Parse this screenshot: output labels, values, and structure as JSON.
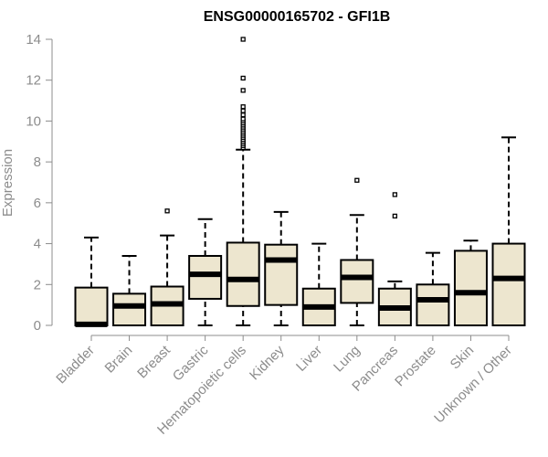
{
  "chart_data": {
    "type": "boxplot",
    "title": "ENSG00000165702 - GFI1B",
    "xlabel": "",
    "ylabel": "Expression",
    "ylim": [
      0,
      14
    ],
    "yticks": [
      0,
      2,
      4,
      6,
      8,
      10,
      12,
      14
    ],
    "grid": false,
    "legend": "none",
    "colors": {
      "box_fill": "#ede6cf",
      "box_stroke": "#000000",
      "axis": "#8c8c8c",
      "text": "#8c8c8c"
    },
    "categories": [
      "Bladder",
      "Brain",
      "Breast",
      "Gastric",
      "Hematopoietic cells",
      "Kidney",
      "Liver",
      "Lung",
      "Pancreas",
      "Prostate",
      "Skin",
      "Unknown / Other"
    ],
    "boxes": [
      {
        "category": "Bladder",
        "whisker_low": 0,
        "q1": 0,
        "median": 0.05,
        "q3": 1.85,
        "whisker_high": 4.3,
        "outliers": []
      },
      {
        "category": "Brain",
        "whisker_low": 0,
        "q1": 0,
        "median": 0.95,
        "q3": 1.55,
        "whisker_high": 3.4,
        "outliers": []
      },
      {
        "category": "Breast",
        "whisker_low": 0,
        "q1": 0,
        "median": 1.05,
        "q3": 1.9,
        "whisker_high": 4.4,
        "outliers": [
          5.6
        ]
      },
      {
        "category": "Gastric",
        "whisker_low": 0,
        "q1": 1.3,
        "median": 2.5,
        "q3": 3.4,
        "whisker_high": 5.2,
        "outliers": []
      },
      {
        "category": "Hematopoietic cells",
        "whisker_low": 0,
        "q1": 0.95,
        "median": 2.25,
        "q3": 4.05,
        "whisker_high": 8.6,
        "outliers": [
          8.7,
          8.8,
          8.9,
          9.0,
          9.1,
          9.2,
          9.3,
          9.4,
          9.5,
          9.6,
          9.7,
          9.8,
          9.9,
          10.0,
          10.1,
          10.3,
          10.5,
          10.7,
          11.5,
          12.1,
          14.0
        ]
      },
      {
        "category": "Kidney",
        "whisker_low": 0,
        "q1": 1.0,
        "median": 3.2,
        "q3": 3.95,
        "whisker_high": 5.55,
        "outliers": []
      },
      {
        "category": "Liver",
        "whisker_low": 0,
        "q1": 0,
        "median": 0.9,
        "q3": 1.8,
        "whisker_high": 4.0,
        "outliers": []
      },
      {
        "category": "Lung",
        "whisker_low": 0,
        "q1": 1.1,
        "median": 2.35,
        "q3": 3.2,
        "whisker_high": 5.4,
        "outliers": [
          7.1
        ]
      },
      {
        "category": "Pancreas",
        "whisker_low": 0,
        "q1": 0,
        "median": 0.85,
        "q3": 1.8,
        "whisker_high": 2.15,
        "outliers": [
          5.35,
          6.4
        ]
      },
      {
        "category": "Prostate",
        "whisker_low": 0,
        "q1": 0,
        "median": 1.25,
        "q3": 2.0,
        "whisker_high": 3.55,
        "outliers": []
      },
      {
        "category": "Skin",
        "whisker_low": 0,
        "q1": 0,
        "median": 1.6,
        "q3": 3.65,
        "whisker_high": 4.15,
        "outliers": []
      },
      {
        "category": "Unknown / Other",
        "whisker_low": 0,
        "q1": 0,
        "median": 2.3,
        "q3": 4.0,
        "whisker_high": 9.2,
        "outliers": []
      }
    ]
  }
}
